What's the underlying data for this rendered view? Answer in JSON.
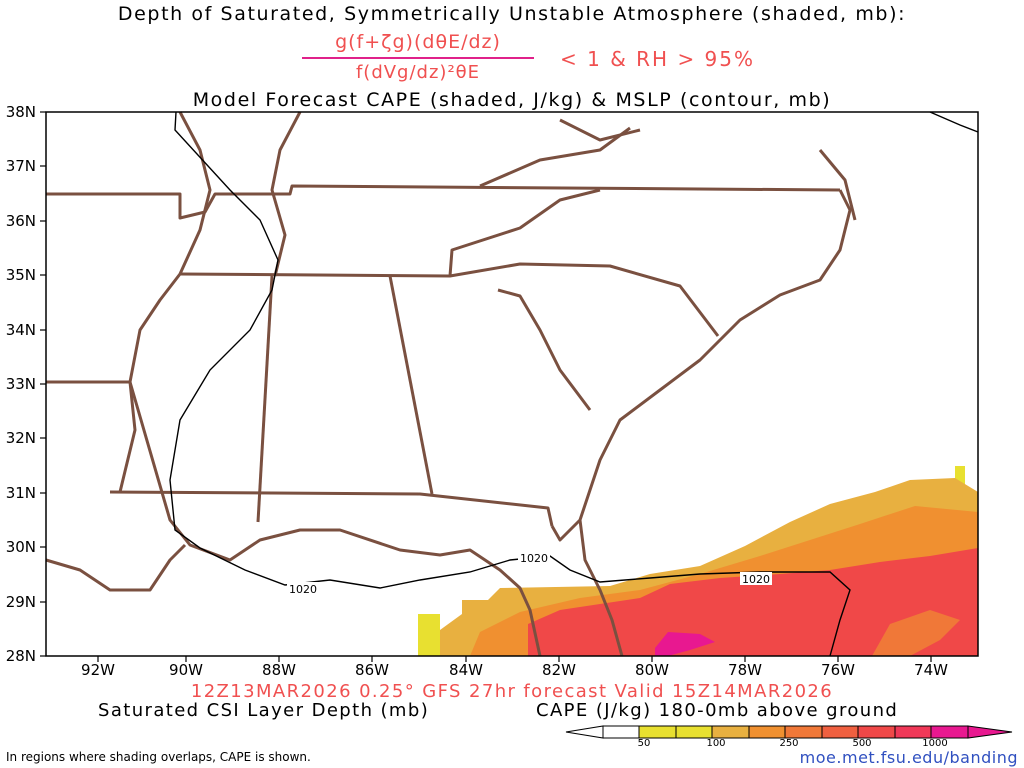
{
  "titles": {
    "line1": "Depth of Saturated, Symmetrically Unstable Atmosphere (shaded, mb):",
    "numerator": "g(f+ζg)(dθE/dz)",
    "denominator": "f(dVg/dz)²θE",
    "condition": "< 1 & RH > 95%",
    "line3": "Model Forecast CAPE (shaded, J/kg) & MSLP (contour, mb)",
    "forecast": "12Z13MAR2026 0.25° GFS 27hr forecast Valid 15Z14MAR2026"
  },
  "axes": {
    "lat_labels": [
      "38N",
      "37N",
      "36N",
      "35N",
      "34N",
      "33N",
      "32N",
      "31N",
      "30N",
      "29N",
      "28N"
    ],
    "lon_labels": [
      "92W",
      "90W",
      "88W",
      "86W",
      "84W",
      "82W",
      "80W",
      "78W",
      "76W",
      "74W"
    ]
  },
  "contours": {
    "mslp_label": "1020"
  },
  "legend": {
    "csi_label": "Saturated CSI Layer Depth (mb)",
    "cape_label": "CAPE (J/kg) 180-0mb above ground",
    "cape_ticks": [
      "50",
      "100",
      "250",
      "500",
      "1000"
    ],
    "cape_colors": [
      "#ffffff",
      "#e8e030",
      "#e8b040",
      "#f09030",
      "#f07838",
      "#f04848",
      "#e81890"
    ]
  },
  "footer": {
    "note": "In regions where shading overlaps, CAPE is shown.",
    "url": "moe.met.fsu.edu/banding"
  },
  "colors": {
    "title_red": "#f05050",
    "state_lines": "#7a5040",
    "map_bg": "#ffffff"
  }
}
